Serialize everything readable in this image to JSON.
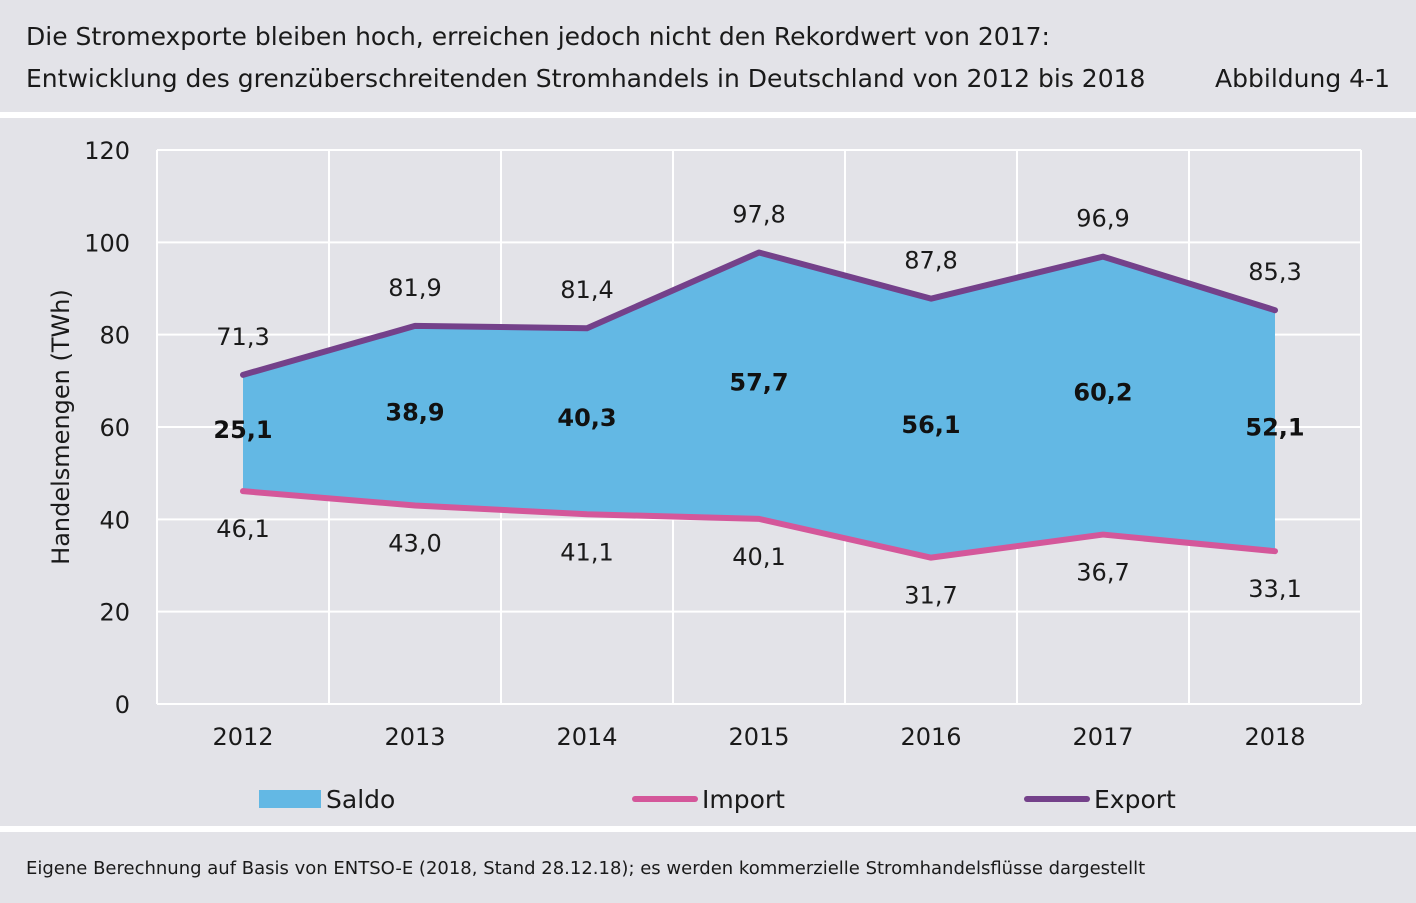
{
  "header": {
    "title_line1": "Die Stromexporte bleiben hoch, erreichen jedoch nicht den Rekordwert von 2017:",
    "title_line2": "Entwicklung des grenzüberschreitenden Stromhandels in Deutschland von 2012 bis 2018",
    "figure_label": "Abbildung 4-1"
  },
  "footer": {
    "source": "Eigene Berechnung auf Basis von ENTSO-E (2018, Stand 28.12.18); es werden kommerzielle Stromhandelsflüsse dargestellt"
  },
  "colors": {
    "saldo": "#63b8e4",
    "import": "#d4579a",
    "export": "#74418a",
    "background": "#e3e3e8",
    "grid": "#ffffff"
  },
  "chart_data": {
    "type": "area",
    "categories": [
      "2012",
      "2013",
      "2014",
      "2015",
      "2016",
      "2017",
      "2018"
    ],
    "ylabel": "Handelsmengen (TWh)",
    "ylim": [
      0,
      120
    ],
    "yticks": [
      0,
      20,
      40,
      60,
      80,
      100,
      120
    ],
    "grid": true,
    "legend_position": "bottom",
    "series": [
      {
        "name": "Saldo",
        "values": [
          25.1,
          38.9,
          40.3,
          57.7,
          56.1,
          60.2,
          52.1
        ],
        "labels": [
          "25,1",
          "38,9",
          "40,3",
          "57,7",
          "56,1",
          "60,2",
          "52,1"
        ]
      },
      {
        "name": "Import",
        "values": [
          46.1,
          43.0,
          41.1,
          40.1,
          31.7,
          36.7,
          33.1
        ],
        "labels": [
          "46,1",
          "43,0",
          "41,1",
          "40,1",
          "31,7",
          "36,7",
          "33,1"
        ]
      },
      {
        "name": "Export",
        "values": [
          71.3,
          81.9,
          81.4,
          97.8,
          87.8,
          96.9,
          85.3
        ],
        "labels": [
          "71,3",
          "81,9",
          "81,4",
          "97,8",
          "87,8",
          "96,9",
          "85,3"
        ]
      }
    ]
  }
}
